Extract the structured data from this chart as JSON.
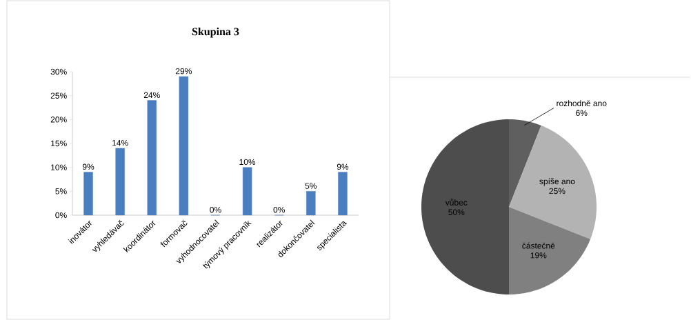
{
  "chart_data": [
    {
      "type": "bar",
      "title": "Skupina 3",
      "categories": [
        "inovátor",
        "vyhledávač",
        "koordinátor",
        "formovač",
        "vyhodnocovatel",
        "týmový pracovník",
        "realizátor",
        "dokončovatel",
        "specialista"
      ],
      "values": [
        9,
        14,
        24,
        29,
        0,
        10,
        0,
        5,
        9
      ],
      "color": "#4a7ebf",
      "ylim": [
        0,
        30
      ],
      "yticks": [
        {
          "value": 0,
          "label": "0%"
        },
        {
          "value": 5,
          "label": "5%"
        },
        {
          "value": 10,
          "label": "10%"
        },
        {
          "value": 15,
          "label": "15%"
        },
        {
          "value": 20,
          "label": "20%"
        },
        {
          "value": 25,
          "label": "25%"
        },
        {
          "value": 30,
          "label": "30%"
        }
      ],
      "value_labels": [
        "9%",
        "14%",
        "24%",
        "29%",
        "0%",
        "10%",
        "0%",
        "5%",
        "9%"
      ]
    },
    {
      "type": "pie",
      "categories": [
        "rozhodně ano",
        "spíše ano",
        "částečně",
        "vůbec"
      ],
      "values": [
        6,
        25,
        19,
        50
      ],
      "colors": [
        "#5f5f5f",
        "#b3b3b3",
        "#808080",
        "#4d4d4d"
      ],
      "value_labels": [
        "6%",
        "25%",
        "19%",
        "50%"
      ]
    }
  ]
}
